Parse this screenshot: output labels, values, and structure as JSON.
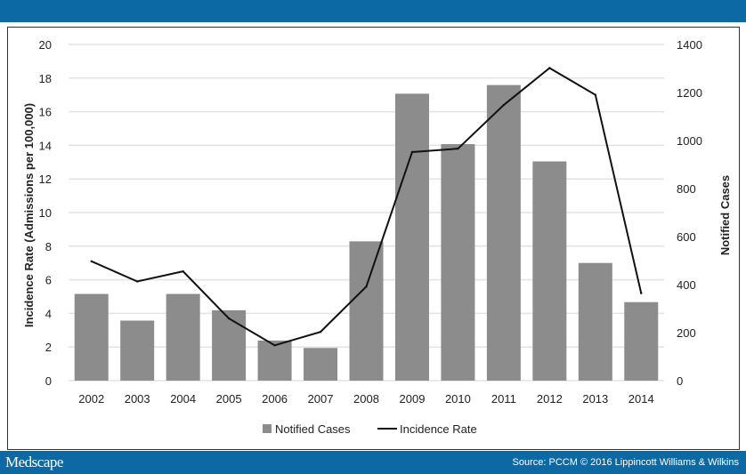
{
  "footer": {
    "logo": "Medscape",
    "source": "Source: PCCM © 2016 Lippincott Williams & Wilkins"
  },
  "colors": {
    "brand": "#0d69a4",
    "bars": "#8c8c8c",
    "line": "#111111",
    "grid": "#e3e3e3"
  },
  "chart_data": {
    "type": "bar+line",
    "categories": [
      "2002",
      "2003",
      "2004",
      "2005",
      "2006",
      "2007",
      "2008",
      "2009",
      "2010",
      "2011",
      "2012",
      "2013",
      "2014"
    ],
    "series": [
      {
        "name": "Notified Cases",
        "type": "bar",
        "axis": "right",
        "values": [
          361,
          250,
          361,
          293,
          167,
          136,
          580,
          1195,
          985,
          1231,
          913,
          490,
          327
        ]
      },
      {
        "name": "Incidence Rate",
        "type": "line",
        "axis": "left",
        "values": [
          7.1,
          5.9,
          6.5,
          3.7,
          2.1,
          2.9,
          5.6,
          13.6,
          13.8,
          16.4,
          18.6,
          17.0,
          5.2
        ]
      }
    ],
    "ylabel": "Incidence Rate (Admissions per 100,000)",
    "y2label": "Notified Cases",
    "ylim": [
      0,
      20
    ],
    "y2lim": [
      0,
      1400
    ],
    "yticks": [
      "0",
      "2",
      "4",
      "6",
      "8",
      "10",
      "12",
      "14",
      "16",
      "18",
      "20"
    ],
    "y2ticks": [
      "0",
      "200",
      "400",
      "600",
      "800",
      "1000",
      "1200",
      "1400"
    ],
    "grid": true,
    "legend": "bottom"
  }
}
